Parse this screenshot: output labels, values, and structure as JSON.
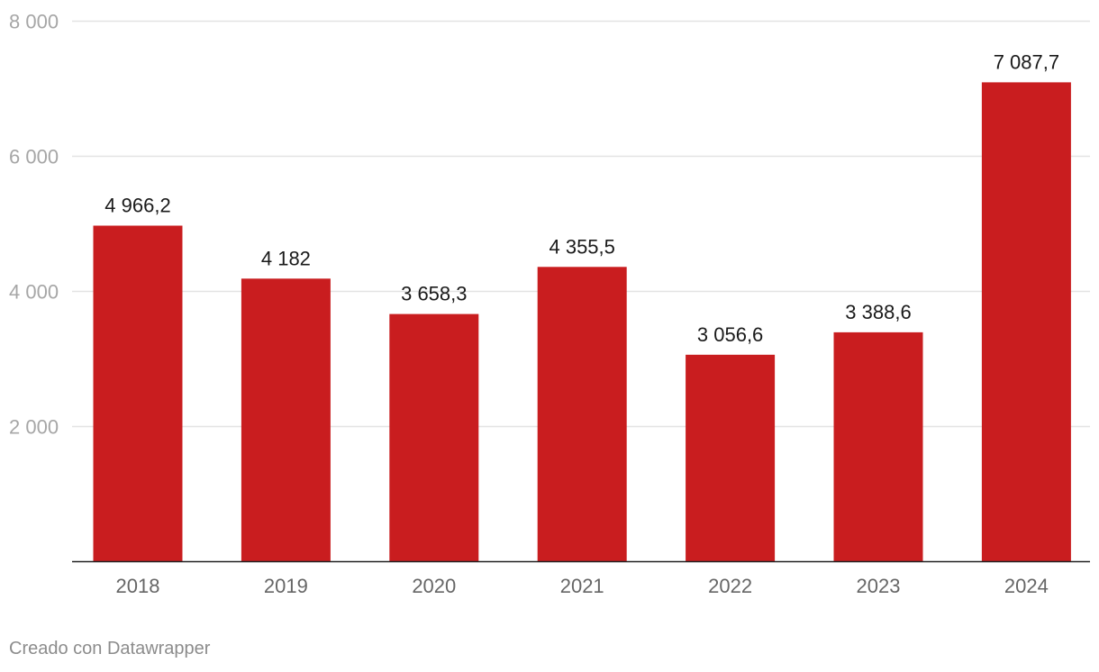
{
  "chart_data": {
    "type": "bar",
    "title": "",
    "xlabel": "",
    "ylabel": "",
    "categories": [
      "2018",
      "2019",
      "2020",
      "2021",
      "2022",
      "2023",
      "2024"
    ],
    "values": [
      4966.2,
      4182,
      3658.3,
      4355.5,
      3056.6,
      3388.6,
      7087.7
    ],
    "value_labels": [
      "4 966,2",
      "4 182",
      "3 658,3",
      "4 355,5",
      "3 056,6",
      "3 388,6",
      "7 087,7"
    ],
    "ylim": [
      0,
      8000
    ],
    "yticks": [
      2000,
      4000,
      6000,
      8000
    ],
    "ytick_labels": [
      "2 000",
      "4 000",
      "6 000",
      "8 000"
    ],
    "grid": true,
    "legend": "none",
    "bar_color": "#c91d1f"
  },
  "footer": {
    "credit": "Creado con Datawrapper"
  }
}
